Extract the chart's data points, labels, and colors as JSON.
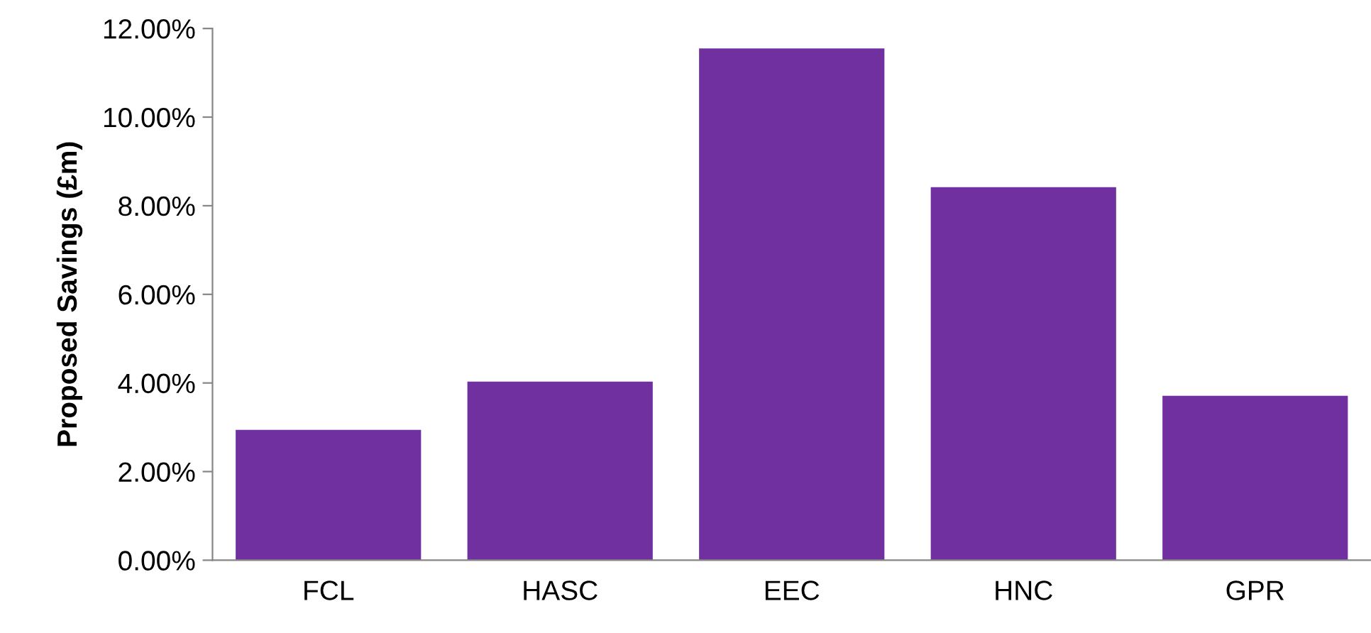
{
  "chart_data": {
    "type": "bar",
    "ylabel": "Proposed Savings (£m)",
    "categories": [
      "FCL",
      "HASC",
      "EEC",
      "HNC",
      "GPR"
    ],
    "values": [
      2.94,
      4.03,
      11.55,
      8.42,
      3.71
    ],
    "color": "#7030a0",
    "ylim": [
      0,
      12
    ],
    "yticks": [
      {
        "value": 0,
        "label": "0.00%"
      },
      {
        "value": 2,
        "label": "2.00%"
      },
      {
        "value": 4,
        "label": "4.00%"
      },
      {
        "value": 6,
        "label": "6.00%"
      },
      {
        "value": 8,
        "label": "8.00%"
      },
      {
        "value": 10,
        "label": "10.00%"
      },
      {
        "value": 12,
        "label": "12.00%"
      }
    ],
    "grid": false,
    "legend": false
  }
}
